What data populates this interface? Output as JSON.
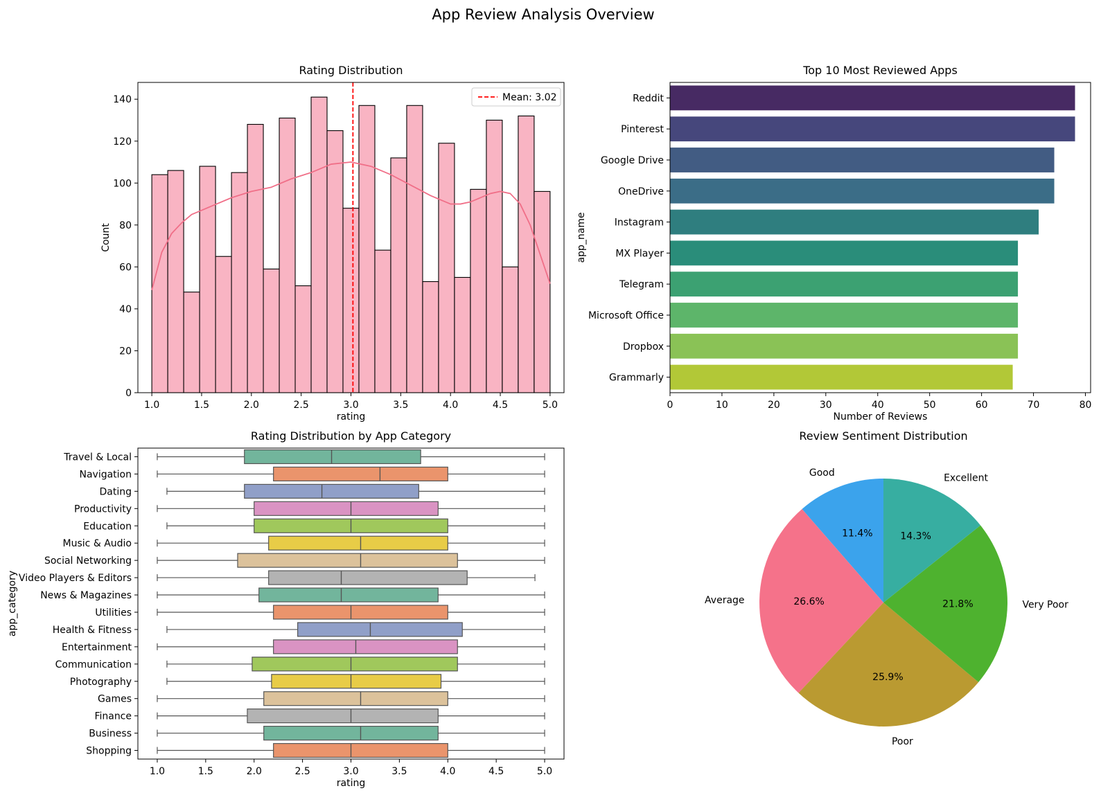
{
  "figure": {
    "title": "App Review Analysis Overview"
  },
  "chart_data": [
    {
      "type": "bar",
      "subtype": "histogram",
      "title": "Rating Distribution",
      "xlabel": "rating",
      "ylabel": "Count",
      "xlim": [
        0.86,
        5.14
      ],
      "ylim": [
        0,
        148
      ],
      "xticks": [
        1.0,
        1.5,
        2.0,
        2.5,
        3.0,
        3.5,
        4.0,
        4.5,
        5.0
      ],
      "xtick_labels": [
        "1.0",
        "1.5",
        "2.0",
        "2.5",
        "3.0",
        "3.5",
        "4.0",
        "4.5",
        "5.0"
      ],
      "yticks": [
        0,
        20,
        40,
        60,
        80,
        100,
        120,
        140
      ],
      "ytick_labels": [
        "0",
        "20",
        "40",
        "60",
        "80",
        "100",
        "120",
        "140"
      ],
      "bin_range": [
        1.0,
        5.0
      ],
      "counts": [
        104,
        106,
        48,
        108,
        65,
        105,
        128,
        59,
        131,
        51,
        141,
        125,
        88,
        137,
        68,
        112,
        137,
        53,
        119,
        55,
        97,
        130,
        60,
        132,
        96
      ],
      "bar_color": "#f9b4c3",
      "kde": {
        "color": "#f06f88",
        "x": [
          1.0,
          1.1,
          1.2,
          1.3,
          1.4,
          1.5,
          1.6,
          1.8,
          2.0,
          2.2,
          2.4,
          2.6,
          2.8,
          3.0,
          3.2,
          3.4,
          3.6,
          3.8,
          4.0,
          4.1,
          4.2,
          4.4,
          4.5,
          4.6,
          4.7,
          4.8,
          4.9,
          5.0
        ],
        "y": [
          49,
          67,
          76,
          81,
          85,
          87,
          89,
          93,
          96,
          98,
          102,
          105,
          109,
          110,
          108,
          104,
          99,
          94,
          90,
          90,
          91,
          95,
          96,
          95,
          90,
          80,
          66,
          52
        ]
      },
      "mean_line": {
        "value": 3.02,
        "label": "Mean: 3.02",
        "color": "#ff0000"
      },
      "legend": "top-right"
    },
    {
      "type": "bar",
      "orientation": "horizontal",
      "title": "Top 10 Most Reviewed Apps",
      "xlabel": "Number of Reviews",
      "ylabel": "app_name",
      "xlim": [
        0,
        81
      ],
      "xticks": [
        0,
        10,
        20,
        30,
        40,
        50,
        60,
        70,
        80
      ],
      "xtick_labels": [
        "0",
        "10",
        "20",
        "30",
        "40",
        "50",
        "60",
        "70",
        "80"
      ],
      "categories": [
        "Reddit",
        "Pinterest",
        "Google Drive",
        "OneDrive",
        "Instagram",
        "MX Player",
        "Telegram",
        "Microsoft Office",
        "Dropbox",
        "Grammarly"
      ],
      "values": [
        78,
        78,
        74,
        74,
        71,
        67,
        67,
        67,
        67,
        66
      ],
      "colors": [
        "#472a63",
        "#46477c",
        "#425c83",
        "#3b6d87",
        "#2f7e7f",
        "#2a8d7a",
        "#3ca172",
        "#5db56a",
        "#8ac256",
        "#b2c837"
      ]
    },
    {
      "type": "box",
      "orientation": "horizontal",
      "title": "Rating Distribution by App Category",
      "xlabel": "rating",
      "ylabel": "app_category",
      "xlim": [
        0.8,
        5.2
      ],
      "xticks": [
        1.0,
        1.5,
        2.0,
        2.5,
        3.0,
        3.5,
        4.0,
        4.5,
        5.0
      ],
      "xtick_labels": [
        "1.0",
        "1.5",
        "2.0",
        "2.5",
        "3.0",
        "3.5",
        "4.0",
        "4.5",
        "5.0"
      ],
      "categories": [
        "Travel & Local",
        "Navigation",
        "Dating",
        "Productivity",
        "Education",
        "Music & Audio",
        "Social Networking",
        "Video Players & Editors",
        "News & Magazines",
        "Utilities",
        "Health & Fitness",
        "Entertainment",
        "Communication",
        "Photography",
        "Games",
        "Finance",
        "Business",
        "Shopping"
      ],
      "boxes": [
        {
          "min": 1.0,
          "q1": 1.9,
          "median": 2.8,
          "q3": 3.72,
          "max": 5.0
        },
        {
          "min": 1.0,
          "q1": 2.2,
          "median": 3.3,
          "q3": 4.0,
          "max": 5.0
        },
        {
          "min": 1.1,
          "q1": 1.9,
          "median": 2.7,
          "q3": 3.7,
          "max": 5.0
        },
        {
          "min": 1.0,
          "q1": 2.0,
          "median": 3.0,
          "q3": 3.9,
          "max": 5.0
        },
        {
          "min": 1.1,
          "q1": 2.0,
          "median": 3.0,
          "q3": 4.0,
          "max": 5.0
        },
        {
          "min": 1.0,
          "q1": 2.15,
          "median": 3.1,
          "q3": 4.0,
          "max": 5.0
        },
        {
          "min": 1.0,
          "q1": 1.83,
          "median": 3.1,
          "q3": 4.1,
          "max": 5.0
        },
        {
          "min": 1.0,
          "q1": 2.15,
          "median": 2.9,
          "q3": 4.2,
          "max": 4.9
        },
        {
          "min": 1.0,
          "q1": 2.05,
          "median": 2.9,
          "q3": 3.9,
          "max": 5.0
        },
        {
          "min": 1.0,
          "q1": 2.2,
          "median": 3.0,
          "q3": 4.0,
          "max": 5.0
        },
        {
          "min": 1.1,
          "q1": 2.45,
          "median": 3.2,
          "q3": 4.15,
          "max": 5.0
        },
        {
          "min": 1.0,
          "q1": 2.2,
          "median": 3.05,
          "q3": 4.1,
          "max": 5.0
        },
        {
          "min": 1.1,
          "q1": 1.98,
          "median": 3.0,
          "q3": 4.1,
          "max": 5.0
        },
        {
          "min": 1.1,
          "q1": 2.18,
          "median": 3.0,
          "q3": 3.93,
          "max": 5.0
        },
        {
          "min": 1.0,
          "q1": 2.1,
          "median": 3.1,
          "q3": 4.0,
          "max": 5.0
        },
        {
          "min": 1.0,
          "q1": 1.93,
          "median": 3.0,
          "q3": 3.9,
          "max": 5.0
        },
        {
          "min": 1.0,
          "q1": 2.1,
          "median": 3.1,
          "q3": 3.9,
          "max": 5.0
        },
        {
          "min": 1.0,
          "q1": 2.2,
          "median": 3.0,
          "q3": 4.0,
          "max": 5.0
        }
      ],
      "palette": [
        "#72b59c",
        "#ea946c",
        "#909fc8",
        "#da93c3",
        "#a0c85c",
        "#e8cc47",
        "#dcc29b",
        "#b3b3b3"
      ]
    },
    {
      "type": "pie",
      "title": "Review Sentiment Distribution",
      "labels": [
        "Good",
        "Average",
        "Poor",
        "Very Poor",
        "Excellent"
      ],
      "values": [
        11.4,
        26.6,
        25.9,
        21.8,
        14.3
      ],
      "value_labels": [
        "11.4%",
        "26.6%",
        "25.9%",
        "21.8%",
        "14.3%"
      ],
      "colors": [
        "#3ba3ec",
        "#f5728a",
        "#ba9a31",
        "#4eb22f",
        "#37aea1"
      ],
      "start_angle": 90,
      "direction": "counterclockwise"
    }
  ]
}
